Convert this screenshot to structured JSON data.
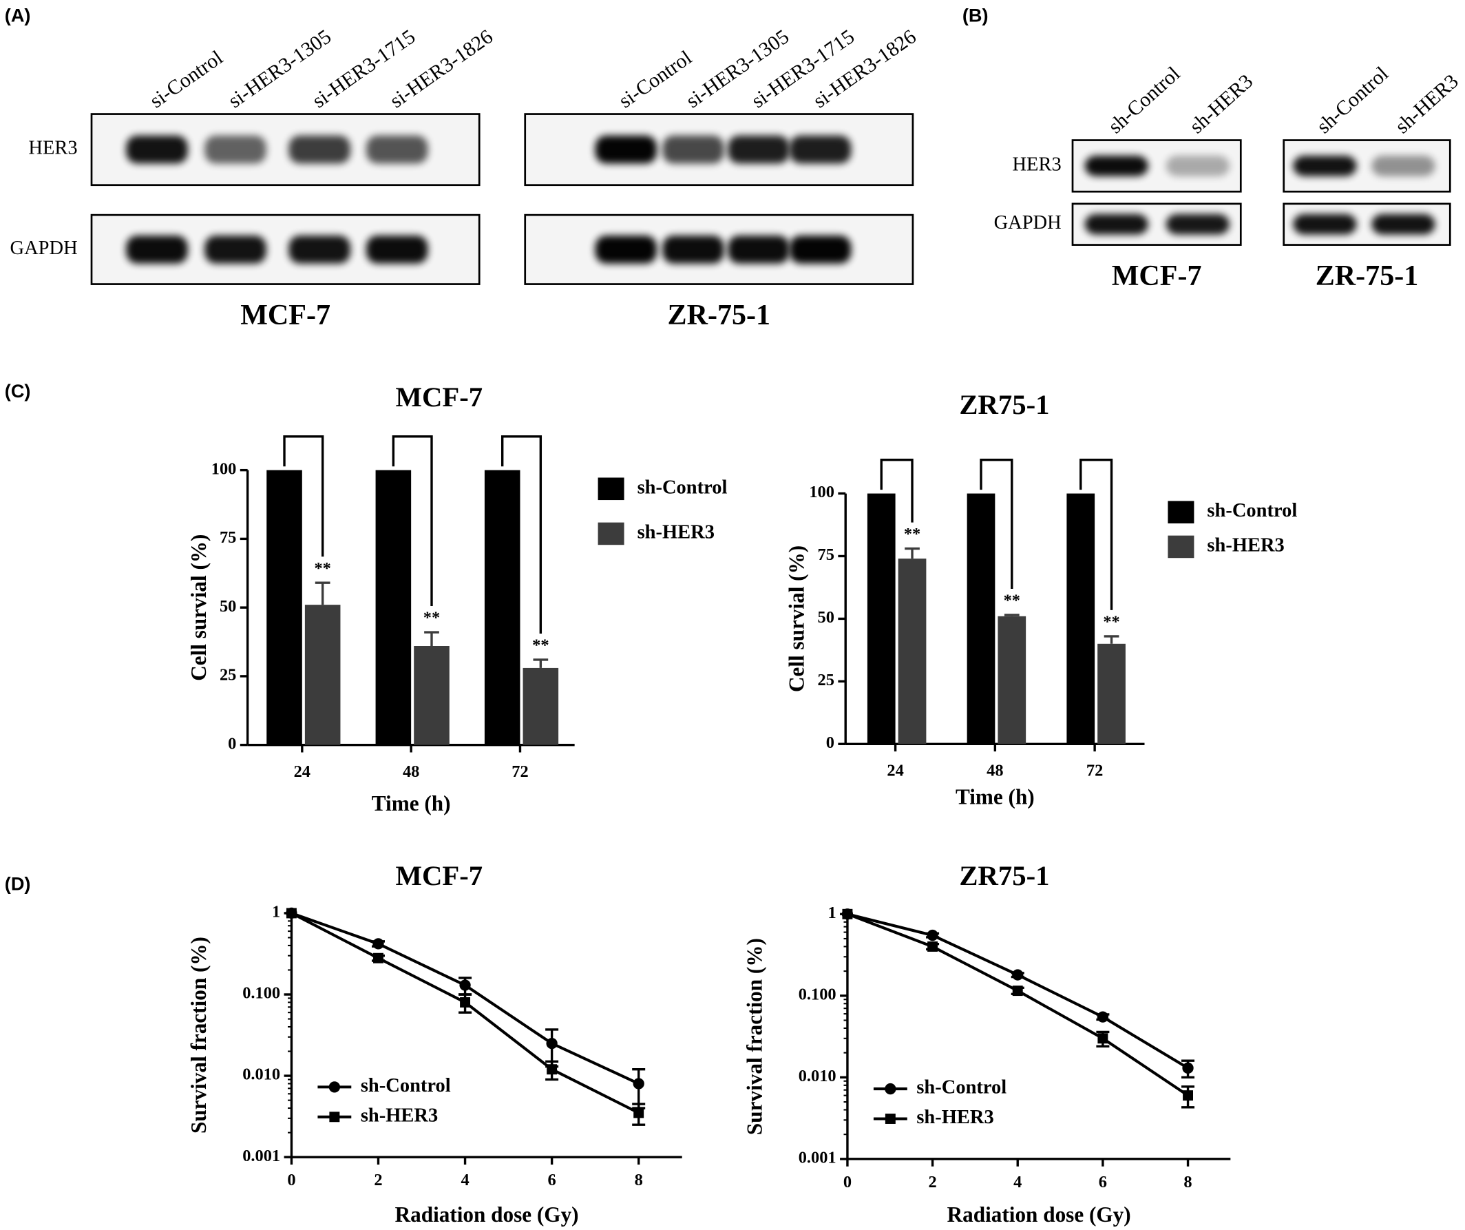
{
  "panel_labels": [
    "(A)",
    "(B)",
    "(C)",
    "(D)"
  ],
  "blots": {
    "A": {
      "rows": [
        "HER3",
        "GAPDH"
      ],
      "panels": [
        {
          "cell_line": "MCF-7",
          "lanes": [
            "si-Control",
            "si-HER3-1305",
            "si-HER3-1715",
            "si-HER3-1826"
          ]
        },
        {
          "cell_line": "ZR-75-1",
          "lanes": [
            "si-Control",
            "si-HER3-1305",
            "si-HER3-1715",
            "si-HER3-1826"
          ]
        }
      ]
    },
    "B": {
      "rows": [
        "HER3",
        "GAPDH"
      ],
      "panels": [
        {
          "cell_line": "MCF-7",
          "lanes": [
            "sh-Control",
            "sh-HER3"
          ]
        },
        {
          "cell_line": "ZR-75-1",
          "lanes": [
            "sh-Control",
            "sh-HER3"
          ]
        }
      ]
    }
  },
  "chart_data": [
    {
      "type": "bar",
      "title": "MCF-7",
      "x_label": "Time (h)",
      "y_label": "Cell survial (%)",
      "categories": [
        "24",
        "48",
        "72"
      ],
      "series": [
        {
          "name": "sh-Control",
          "color": "#000000",
          "values": [
            100,
            100,
            100
          ]
        },
        {
          "name": "sh-HER3",
          "color": "#3c3c3c",
          "values": [
            51,
            36,
            28
          ],
          "errors": [
            8,
            5,
            3
          ],
          "annotations": [
            "**",
            "**",
            "**"
          ]
        }
      ],
      "ylim": [
        0,
        100
      ],
      "yticks": [
        0,
        25,
        50,
        75,
        100
      ],
      "legend": "right"
    },
    {
      "type": "bar",
      "title": "ZR75-1",
      "x_label": "Time (h)",
      "y_label": "Cell survial (%)",
      "categories": [
        "24",
        "48",
        "72"
      ],
      "series": [
        {
          "name": "sh-Control",
          "color": "#000000",
          "values": [
            100,
            100,
            100
          ]
        },
        {
          "name": "sh-HER3",
          "color": "#3c3c3c",
          "values": [
            74,
            51,
            40
          ],
          "errors": [
            4,
            0.5,
            3
          ],
          "annotations": [
            "**",
            "**",
            "**"
          ]
        }
      ],
      "ylim": [
        0,
        100
      ],
      "yticks": [
        0,
        25,
        50,
        75,
        100
      ],
      "legend": "right"
    },
    {
      "type": "line",
      "title": "MCF-7",
      "x_label": "Radiation dose (Gy)",
      "y_label": "Survival fraction (%)",
      "x": [
        0,
        2,
        4,
        6,
        8
      ],
      "series": [
        {
          "name": "sh-Control",
          "color": "#000000",
          "marker": "circle",
          "values": [
            1,
            0.42,
            0.13,
            0.025,
            0.008
          ],
          "errors": [
            0,
            0.03,
            0.03,
            0.012,
            0.004
          ]
        },
        {
          "name": "sh-HER3",
          "color": "#000000",
          "marker": "square",
          "values": [
            1,
            0.28,
            0.08,
            0.012,
            0.0035
          ],
          "errors": [
            0,
            0.02,
            0.02,
            0.003,
            0.001
          ]
        }
      ],
      "xlim": [
        0,
        9
      ],
      "xticks": [
        0,
        2,
        4,
        6,
        8
      ],
      "ylim": [
        0.001,
        1
      ],
      "yticks": [
        0.001,
        {
          "value": 0.01,
          "label": "0.010"
        },
        {
          "value": 0.1,
          "label": "0.100"
        },
        1
      ],
      "log_y": true,
      "legend": "lower left"
    },
    {
      "type": "line",
      "title": "ZR75-1",
      "x_label": "Radiation dose (Gy)",
      "y_label": "Survival fraction (%)",
      "x": [
        0,
        2,
        4,
        6,
        8
      ],
      "series": [
        {
          "name": "sh-Control",
          "color": "#000000",
          "marker": "circle",
          "values": [
            1,
            0.55,
            0.18,
            0.055,
            0.013
          ],
          "errors": [
            0,
            0.03,
            0.01,
            0.004,
            0.003
          ]
        },
        {
          "name": "sh-HER3",
          "color": "#000000",
          "marker": "square",
          "values": [
            1,
            0.4,
            0.115,
            0.03,
            0.006
          ],
          "errors": [
            0,
            0.03,
            0.01,
            0.006,
            0.0017
          ]
        }
      ],
      "xlim": [
        0,
        9
      ],
      "xticks": [
        0,
        2,
        4,
        6,
        8
      ],
      "ylim": [
        0.001,
        1
      ],
      "yticks": [
        0.001,
        {
          "value": 0.01,
          "label": "0.010"
        },
        {
          "value": 0.1,
          "label": "0.100"
        },
        1
      ],
      "log_y": true,
      "legend": "lower left"
    }
  ]
}
